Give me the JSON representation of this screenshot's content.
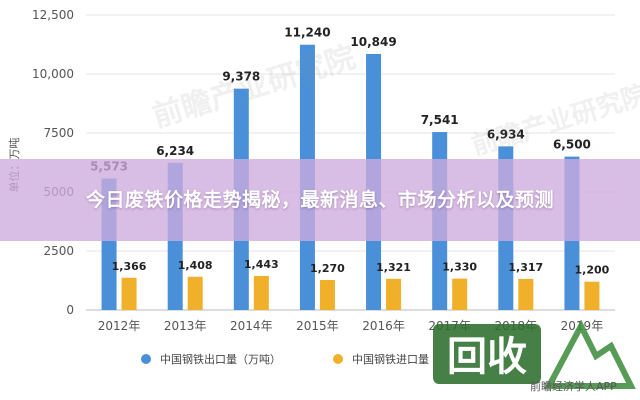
{
  "banner": {
    "title": "今日废铁价格走势揭秘，最新消息、市场分析以及预测"
  },
  "watermarks": {
    "top": "前瞻产业研究院",
    "right": "前瞻产业研究院",
    "source": "前瞻经济学人APP"
  },
  "logo": {
    "text": "回收"
  },
  "colors": {
    "export": "#4a90d9",
    "import": "#f0b02a",
    "banner": "#cdaadc"
  },
  "chart_data": {
    "type": "bar",
    "categories": [
      "2012年",
      "2013年",
      "2014年",
      "2015年",
      "2016年",
      "2017年",
      "2018年",
      "2019年"
    ],
    "ylabel": "单位：万吨",
    "ylim": [
      0,
      12500
    ],
    "yticks": [
      0,
      2500,
      5000,
      7500,
      10000,
      12500
    ],
    "ytick_labels": [
      "0",
      "2500",
      "5000",
      "7500",
      "10,000",
      "12,500"
    ],
    "grid": true,
    "legend_position": "bottom",
    "series": [
      {
        "name": "中国钢铁出口量（万吨）",
        "values": [
          5573,
          6234,
          9378,
          11240,
          10849,
          7541,
          6934,
          6500
        ],
        "labels": [
          "5,573",
          "6,234",
          "9,378",
          "11,240",
          "10,849",
          "7,541",
          "6,934",
          "6,500"
        ]
      },
      {
        "name": "中国钢铁进口量",
        "values": [
          1366,
          1408,
          1443,
          1270,
          1321,
          1330,
          1317,
          1200
        ],
        "labels": [
          "1,366",
          "1,408",
          "1,443",
          "1,270",
          "1,321",
          "1,330",
          "1,317",
          "1,200"
        ]
      }
    ]
  }
}
